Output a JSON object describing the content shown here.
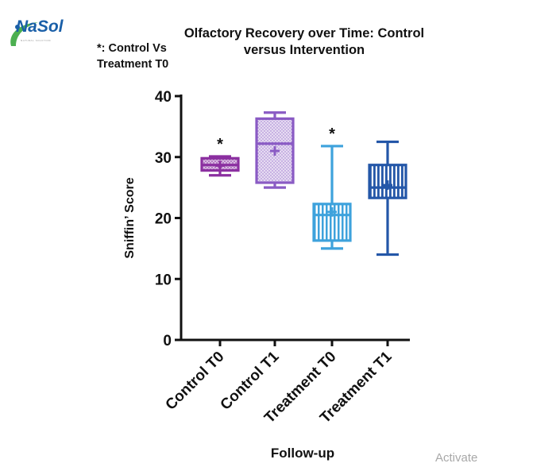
{
  "logo": {
    "name": "NaSol",
    "tagline": "NATURAL SOLUTION"
  },
  "note": "*: Control Vs Treatment T0",
  "watermark": "Activate",
  "colors": {
    "logo_green": "#4caf50",
    "logo_blue": "#1a5fa8",
    "axis": "#111111"
  },
  "chart_data": {
    "type": "boxplot",
    "title": "Olfactory Recovery over Time: Control versus Intervention",
    "xlabel": "Follow-up",
    "ylabel": "Sniffin’ Score",
    "ylim": [
      0,
      40
    ],
    "yticks": [
      0,
      10,
      20,
      30,
      40
    ],
    "categories": [
      "Control T0",
      "Control T1",
      "Treatment T0",
      "Treatment T1"
    ],
    "series": [
      {
        "name": "Control T0",
        "min": 27,
        "q1": 27.8,
        "median": 28.7,
        "mean": 28.6,
        "q3": 29.8,
        "max": 30.1,
        "color": "#8b2fa0",
        "fill": "#d3b4dd",
        "pattern": "dots",
        "significance": "*"
      },
      {
        "name": "Control T1",
        "min": 25,
        "q1": 25.8,
        "median": 32.2,
        "mean": 31.0,
        "q3": 36.3,
        "max": 37.3,
        "color": "#8a5bc4",
        "fill": "#ddd0ee",
        "pattern": "dots",
        "significance": ""
      },
      {
        "name": "Treatment T0",
        "min": 15,
        "q1": 16.3,
        "median": 20.5,
        "mean": 21.0,
        "q3": 22.3,
        "max": 31.8,
        "color": "#3ea2dc",
        "fill": "#ffffff",
        "pattern": "vlines",
        "significance": "*"
      },
      {
        "name": "Treatment T1",
        "min": 14,
        "q1": 23.3,
        "median": 25.0,
        "mean": 25.4,
        "q3": 28.7,
        "max": 32.5,
        "color": "#2457a8",
        "fill": "#ffffff",
        "pattern": "vlines",
        "significance": ""
      }
    ]
  }
}
